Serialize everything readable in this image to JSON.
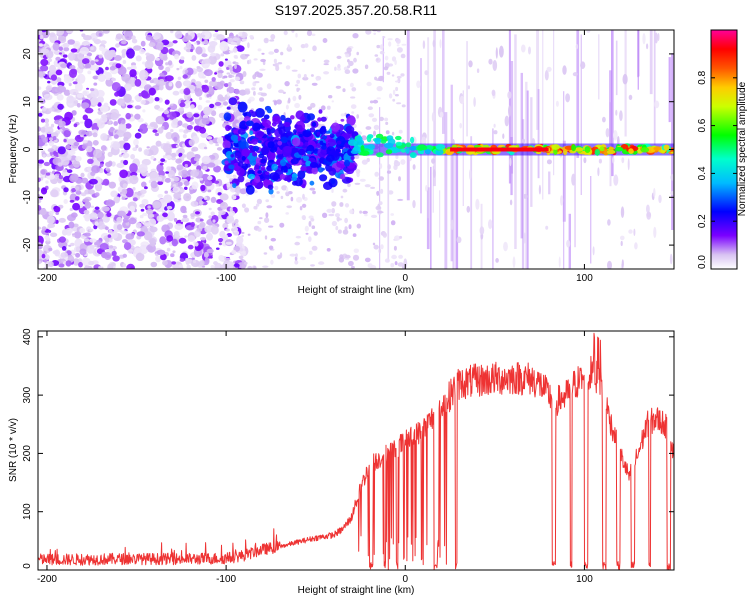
{
  "title": "S197.2025.357.20.58.R11",
  "chart_data": [
    {
      "type": "heatmap",
      "title": "S197.2025.357.20.58.R11",
      "xlabel": "Height of straight line (km)",
      "ylabel": "Frequency (Hz)",
      "xlim": [
        -205,
        150
      ],
      "ylim": [
        -25,
        25
      ],
      "xticks": [
        -200,
        -100,
        0,
        100
      ],
      "xtick_labels": [
        "-200",
        "-100",
        "0",
        "100"
      ],
      "yticks": [
        -20,
        -10,
        0,
        10,
        20
      ],
      "ytick_labels": [
        "-20",
        "-10",
        "0",
        "10",
        "20"
      ],
      "colorbar": {
        "label": "Normalized spectral amplitude",
        "range": [
          0,
          1
        ],
        "ticks": [
          0.0,
          0.2,
          0.4,
          0.6,
          0.8
        ],
        "tick_labels": [
          "0.0",
          "0.2",
          "0.4",
          "0.6",
          "0.8"
        ],
        "colormap": [
          "#e6d8f5",
          "#7a00ff",
          "#0000ff",
          "#00ffff",
          "#00ff00",
          "#ffff00",
          "#ff8800",
          "#ff0000",
          "#ff0099"
        ]
      },
      "features": [
        {
          "name": "scattered noise",
          "x_range": [
            -205,
            -95
          ],
          "frequency_range": [
            -25,
            25
          ],
          "amplitude": [
            0.0,
            0.15
          ]
        },
        {
          "name": "turbulent band",
          "x_range": [
            -100,
            -30
          ],
          "frequency_range": [
            -8,
            8
          ],
          "amplitude": [
            0.1,
            0.3
          ]
        },
        {
          "name": "tone line",
          "x_range": [
            -30,
            150
          ],
          "frequency_center": 0,
          "amplitude": [
            0.3,
            1.0
          ]
        }
      ]
    },
    {
      "type": "line",
      "xlabel": "Height of straight line (km)",
      "ylabel": "SNR (10 * v/v)",
      "xlim": [
        -205,
        150
      ],
      "ylim": [
        0,
        410
      ],
      "xticks": [
        -200,
        -100,
        0,
        100
      ],
      "xtick_labels": [
        "-200",
        "-100",
        "0",
        "100"
      ],
      "yticks": [
        0,
        100,
        200,
        300,
        400
      ],
      "ytick_labels": [
        "0",
        "100",
        "200",
        "300",
        "400"
      ],
      "color": "#ee3333",
      "series": [
        {
          "name": "SNR",
          "x": [
            -205,
            -180,
            -160,
            -140,
            -120,
            -100,
            -90,
            -80,
            -70,
            -60,
            -50,
            -40,
            -35,
            -30,
            -25,
            -20,
            -15,
            -10,
            -5,
            0,
            5,
            10,
            15,
            20,
            25,
            30,
            40,
            50,
            60,
            70,
            75,
            80,
            85,
            90,
            95,
            100,
            105,
            110,
            115,
            120,
            125,
            130,
            135,
            140,
            145,
            150
          ],
          "y": [
            18,
            18,
            19,
            19,
            19,
            20,
            25,
            35,
            40,
            48,
            55,
            60,
            70,
            90,
            140,
            180,
            190,
            200,
            210,
            220,
            230,
            240,
            260,
            270,
            300,
            320,
            325,
            328,
            330,
            328,
            320,
            300,
            290,
            300,
            320,
            330,
            340,
            310,
            250,
            200,
            160,
            200,
            250,
            260,
            250,
            200
          ]
        }
      ]
    }
  ]
}
